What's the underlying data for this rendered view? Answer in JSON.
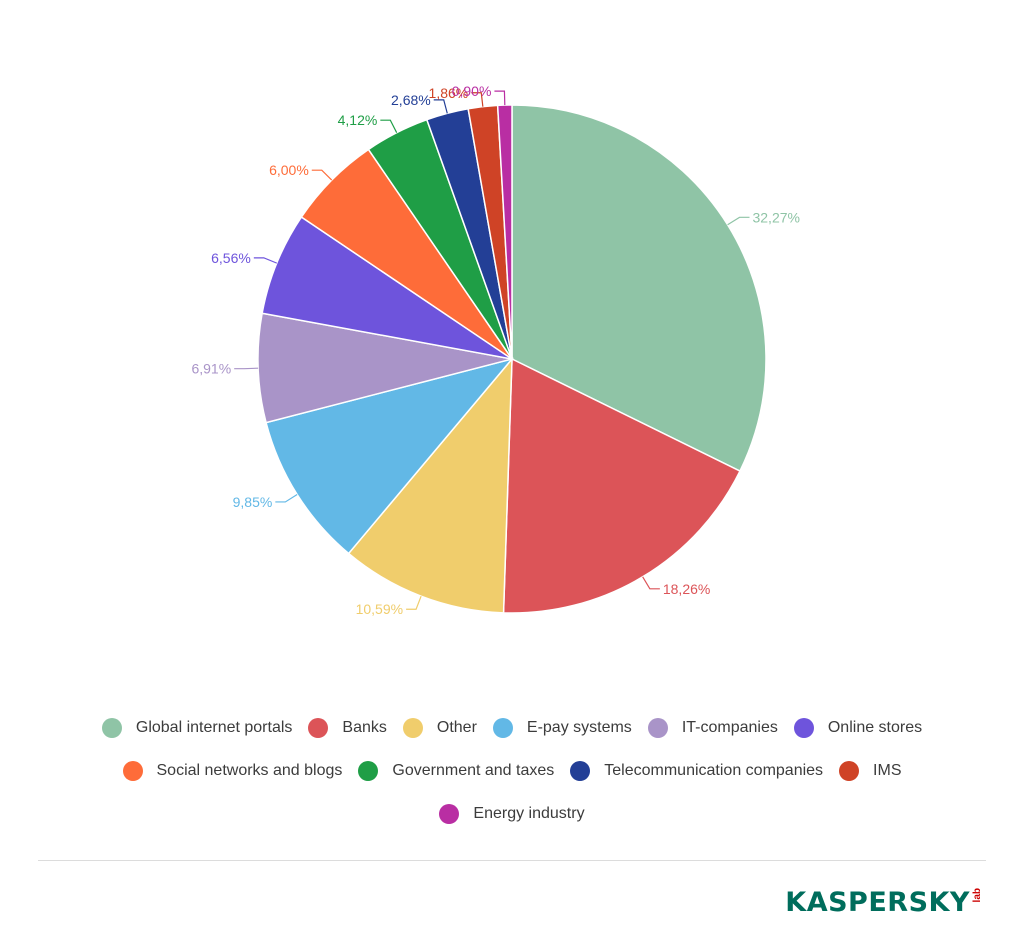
{
  "chart_data": {
    "type": "pie",
    "title": "",
    "slices": [
      {
        "name": "Global internet portals",
        "value": 32.27,
        "label": "32,27%",
        "color": "#8fc4a6",
        "label_color": "#8fc4a6"
      },
      {
        "name": "Banks",
        "value": 18.26,
        "label": "18,26%",
        "color": "#dc5458",
        "label_color": "#dc5458"
      },
      {
        "name": "Other",
        "value": 10.59,
        "label": "10,59%",
        "color": "#f0cd6c",
        "label_color": "#f0cd6c"
      },
      {
        "name": "E-pay systems",
        "value": 9.85,
        "label": "9,85%",
        "color": "#62b8e6",
        "label_color": "#62b8e6"
      },
      {
        "name": "IT-companies",
        "value": 6.91,
        "label": "6,91%",
        "color": "#a994c8",
        "label_color": "#a994c8"
      },
      {
        "name": "Online stores",
        "value": 6.56,
        "label": "6,56%",
        "color": "#6e54dc",
        "label_color": "#6e54dc"
      },
      {
        "name": "Social networks and blogs",
        "value": 6.0,
        "label": "6,00%",
        "color": "#fe6c39",
        "label_color": "#fe6c39"
      },
      {
        "name": "Government and taxes",
        "value": 4.12,
        "label": "4,12%",
        "color": "#1f9e46",
        "label_color": "#1f9e46"
      },
      {
        "name": "Telecommunication companies",
        "value": 2.68,
        "label": "2,68%",
        "color": "#233f96",
        "label_color": "#233f96"
      },
      {
        "name": "IMS",
        "value": 1.86,
        "label": "1,86%",
        "color": "#cf4326",
        "label_color": "#cf4326"
      },
      {
        "name": "Energy industry",
        "value": 0.9,
        "label": "0,90%",
        "color": "#b92ea3",
        "label_color": "#b92ea3"
      }
    ],
    "legend_position": "bottom",
    "start_angle": "top",
    "direction": "clockwise"
  },
  "legend": {
    "rows": [
      [
        0,
        1,
        2,
        3,
        4,
        5
      ],
      [
        6,
        7,
        8,
        9
      ],
      [
        10
      ]
    ]
  },
  "brand": {
    "logo_text": "KASPERSKY",
    "logo_sub": "lab"
  }
}
